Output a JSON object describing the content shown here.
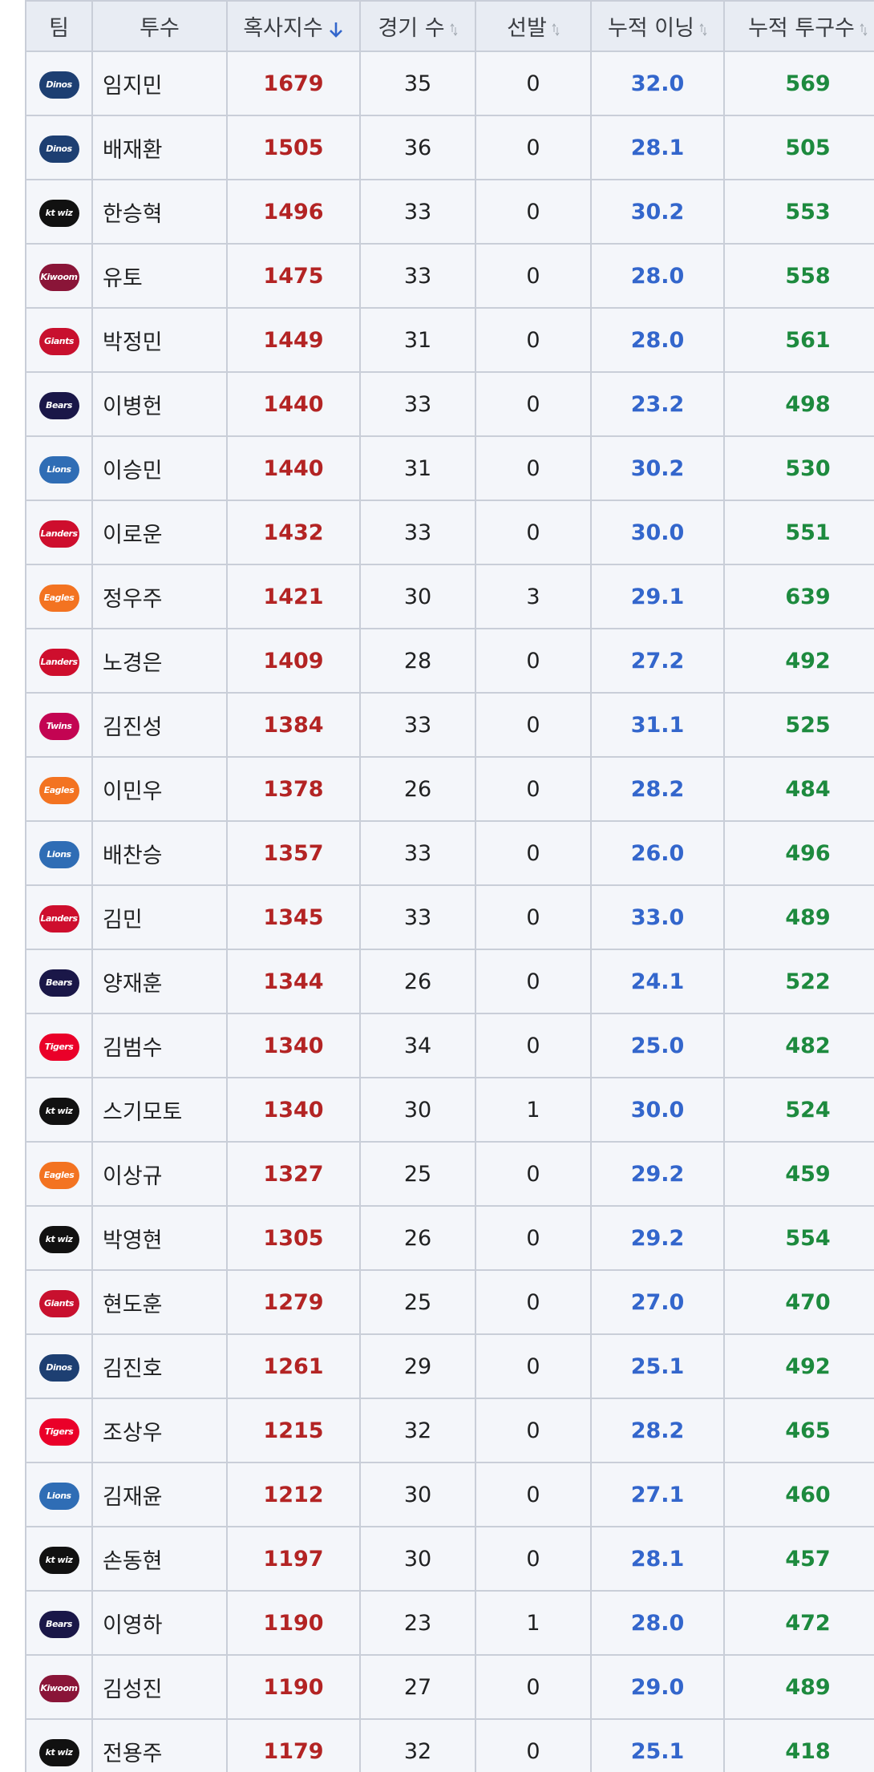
{
  "table": {
    "headers": [
      "팀",
      "투수",
      "혹사지수",
      "경기 수",
      "선발",
      "누적 이닝",
      "누적 투구수"
    ],
    "rows": [
      {
        "team": "Dinos",
        "logo_color": "#1d3f72",
        "cells": [
          "임지민",
          "1679",
          "35",
          "0",
          "32.0",
          "569"
        ]
      },
      {
        "team": "Dinos",
        "logo_color": "#1d3f72",
        "cells": [
          "배재환",
          "1505",
          "36",
          "0",
          "28.1",
          "505"
        ]
      },
      {
        "team": "kt wiz",
        "logo_color": "#111111",
        "cells": [
          "한승혁",
          "1496",
          "33",
          "0",
          "30.2",
          "553"
        ]
      },
      {
        "team": "Kiwoom",
        "logo_color": "#8a1538",
        "cells": [
          "유토",
          "1475",
          "33",
          "0",
          "28.0",
          "558"
        ]
      },
      {
        "team": "Giants",
        "logo_color": "#c8102e",
        "cells": [
          "박정민",
          "1449",
          "31",
          "0",
          "28.0",
          "561"
        ]
      },
      {
        "team": "Bears",
        "logo_color": "#1a1748",
        "cells": [
          "이병헌",
          "1440",
          "33",
          "0",
          "23.2",
          "498"
        ]
      },
      {
        "team": "Lions",
        "logo_color": "#2f6db5",
        "cells": [
          "이승민",
          "1440",
          "31",
          "0",
          "30.2",
          "530"
        ]
      },
      {
        "team": "Landers",
        "logo_color": "#ce0e2d",
        "cells": [
          "이로운",
          "1432",
          "33",
          "0",
          "30.0",
          "551"
        ]
      },
      {
        "team": "Eagles",
        "logo_color": "#f37321",
        "cells": [
          "정우주",
          "1421",
          "30",
          "3",
          "29.1",
          "639"
        ]
      },
      {
        "team": "Landers",
        "logo_color": "#ce0e2d",
        "cells": [
          "노경은",
          "1409",
          "28",
          "0",
          "27.2",
          "492"
        ]
      },
      {
        "team": "Twins",
        "logo_color": "#c30452",
        "cells": [
          "김진성",
          "1384",
          "33",
          "0",
          "31.1",
          "525"
        ]
      },
      {
        "team": "Eagles",
        "logo_color": "#f37321",
        "cells": [
          "이민우",
          "1378",
          "26",
          "0",
          "28.2",
          "484"
        ]
      },
      {
        "team": "Lions",
        "logo_color": "#2f6db5",
        "cells": [
          "배찬승",
          "1357",
          "33",
          "0",
          "26.0",
          "496"
        ]
      },
      {
        "team": "Landers",
        "logo_color": "#ce0e2d",
        "cells": [
          "김민",
          "1345",
          "33",
          "0",
          "33.0",
          "489"
        ]
      },
      {
        "team": "Bears",
        "logo_color": "#1a1748",
        "cells": [
          "양재훈",
          "1344",
          "26",
          "0",
          "24.1",
          "522"
        ]
      },
      {
        "team": "Tigers",
        "logo_color": "#ea0029",
        "cells": [
          "김범수",
          "1340",
          "34",
          "0",
          "25.0",
          "482"
        ]
      },
      {
        "team": "kt wiz",
        "logo_color": "#111111",
        "cells": [
          "스기모토",
          "1340",
          "30",
          "1",
          "30.0",
          "524"
        ]
      },
      {
        "team": "Eagles",
        "logo_color": "#f37321",
        "cells": [
          "이상규",
          "1327",
          "25",
          "0",
          "29.2",
          "459"
        ]
      },
      {
        "team": "kt wiz",
        "logo_color": "#111111",
        "cells": [
          "박영현",
          "1305",
          "26",
          "0",
          "29.2",
          "554"
        ]
      },
      {
        "team": "Giants",
        "logo_color": "#c8102e",
        "cells": [
          "현도훈",
          "1279",
          "25",
          "0",
          "27.0",
          "470"
        ]
      },
      {
        "team": "Dinos",
        "logo_color": "#1d3f72",
        "cells": [
          "김진호",
          "1261",
          "29",
          "0",
          "25.1",
          "492"
        ]
      },
      {
        "team": "Tigers",
        "logo_color": "#ea0029",
        "cells": [
          "조상우",
          "1215",
          "32",
          "0",
          "28.2",
          "465"
        ]
      },
      {
        "team": "Lions",
        "logo_color": "#2f6db5",
        "cells": [
          "김재윤",
          "1212",
          "30",
          "0",
          "27.1",
          "460"
        ]
      },
      {
        "team": "kt wiz",
        "logo_color": "#111111",
        "cells": [
          "손동현",
          "1197",
          "30",
          "0",
          "28.1",
          "457"
        ]
      },
      {
        "team": "Bears",
        "logo_color": "#1a1748",
        "cells": [
          "이영하",
          "1190",
          "23",
          "1",
          "28.0",
          "472"
        ]
      },
      {
        "team": "Kiwoom",
        "logo_color": "#8a1538",
        "cells": [
          "김성진",
          "1190",
          "27",
          "0",
          "29.0",
          "489"
        ]
      },
      {
        "team": "kt wiz",
        "logo_color": "#111111",
        "cells": [
          "전용주",
          "1179",
          "32",
          "0",
          "25.1",
          "418"
        ]
      }
    ]
  }
}
